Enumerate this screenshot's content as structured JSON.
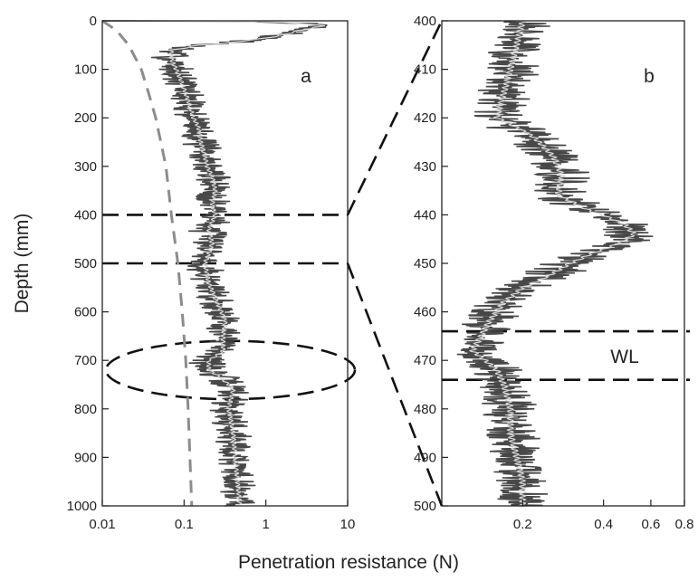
{
  "chart_data": [
    {
      "type": "line",
      "panel_label": "a",
      "xlabel": "Penetration resistance (N)",
      "ylabel": "Depth (mm)",
      "xscale": "log",
      "xlim": [
        0.01,
        10
      ],
      "ylim": [
        0,
        1000
      ],
      "y_inverted": true,
      "xticks": [
        0.01,
        0.1,
        1,
        10
      ],
      "xtick_labels": [
        "0.01",
        "0.1",
        "1",
        "10"
      ],
      "yticks": [
        0,
        100,
        200,
        300,
        400,
        500,
        600,
        700,
        800,
        900,
        1000
      ],
      "ytick_labels": [
        "0",
        "100",
        "200",
        "300",
        "400",
        "500",
        "600",
        "700",
        "800",
        "900",
        "1000"
      ],
      "series": [
        {
          "style": "raw-signal",
          "depth": [
            0,
            10,
            20,
            30,
            40,
            50,
            60,
            80,
            100,
            120,
            140,
            160,
            180,
            200,
            220,
            250,
            280,
            300,
            320,
            350,
            380,
            400,
            430,
            460,
            500,
            540,
            580,
            620,
            650,
            680,
            700,
            720,
            740,
            760,
            800,
            850,
            900,
            950,
            1000
          ],
          "resistance": [
            0.01,
            5.0,
            2.5,
            1.5,
            0.6,
            0.15,
            0.07,
            0.07,
            0.08,
            0.09,
            0.1,
            0.11,
            0.12,
            0.13,
            0.15,
            0.16,
            0.18,
            0.19,
            0.22,
            0.24,
            0.22,
            0.24,
            0.2,
            0.22,
            0.18,
            0.2,
            0.25,
            0.32,
            0.3,
            0.3,
            0.2,
            0.2,
            0.3,
            0.4,
            0.35,
            0.4,
            0.42,
            0.45,
            0.48
          ]
        },
        {
          "style": "dashed-trend",
          "depth": [
            0,
            20,
            50,
            100,
            150,
            200,
            300,
            400,
            500,
            600,
            700,
            800,
            900,
            1000
          ],
          "resistance": [
            0.01,
            0.015,
            0.021,
            0.03,
            0.037,
            0.045,
            0.06,
            0.07,
            0.084,
            0.095,
            0.105,
            0.112,
            0.118,
            0.124
          ]
        }
      ],
      "annotations": [
        {
          "type": "horizontal-dashed",
          "depth": 400
        },
        {
          "type": "horizontal-dashed",
          "depth": 500
        },
        {
          "type": "dashed-ellipse",
          "center_depth": 720,
          "depth_half_span": 60
        }
      ]
    },
    {
      "type": "line",
      "panel_label": "b",
      "xlabel": "Penetration resistance (N)",
      "ylabel": "",
      "xscale": "log",
      "xlim": [
        0.1,
        0.8
      ],
      "ylim": [
        400,
        500
      ],
      "y_inverted": true,
      "xticks": [
        0.2,
        0.4,
        0.6,
        0.8
      ],
      "xtick_labels": [
        "0.2",
        "0.4",
        "0.6",
        "0.8"
      ],
      "yticks": [
        400,
        410,
        420,
        430,
        440,
        450,
        460,
        470,
        480,
        490,
        500
      ],
      "ytick_labels": [
        "400",
        "410",
        "420",
        "430",
        "440",
        "450",
        "460",
        "470",
        "480",
        "490",
        "500"
      ],
      "series": [
        {
          "style": "raw-signal",
          "depth": [
            400,
            405,
            410,
            415,
            420,
            424,
            428,
            432,
            436,
            439,
            442,
            444,
            446,
            448,
            450,
            452,
            455,
            458,
            462,
            465,
            468,
            472,
            475,
            480,
            485,
            490,
            495,
            500
          ],
          "resistance": [
            0.2,
            0.19,
            0.18,
            0.17,
            0.16,
            0.22,
            0.26,
            0.28,
            0.27,
            0.35,
            0.48,
            0.52,
            0.45,
            0.36,
            0.3,
            0.26,
            0.2,
            0.17,
            0.15,
            0.14,
            0.13,
            0.16,
            0.17,
            0.18,
            0.18,
            0.19,
            0.2,
            0.2
          ]
        }
      ],
      "annotations": [
        {
          "type": "horizontal-dashed",
          "depth": 464
        },
        {
          "type": "horizontal-dashed",
          "depth": 474
        },
        {
          "type": "text",
          "text": "WL"
        }
      ]
    }
  ],
  "figure": {
    "shared_xlabel": "Penetration resistance (N)",
    "weak_layer_label": "WL"
  },
  "colors": {
    "signal": "#3a3a3a",
    "signal_light": "#8a8a8a",
    "smooth": "#d8d8d8",
    "trend": "#8c8c8c",
    "guide": "#111111",
    "axis": "#222222"
  }
}
